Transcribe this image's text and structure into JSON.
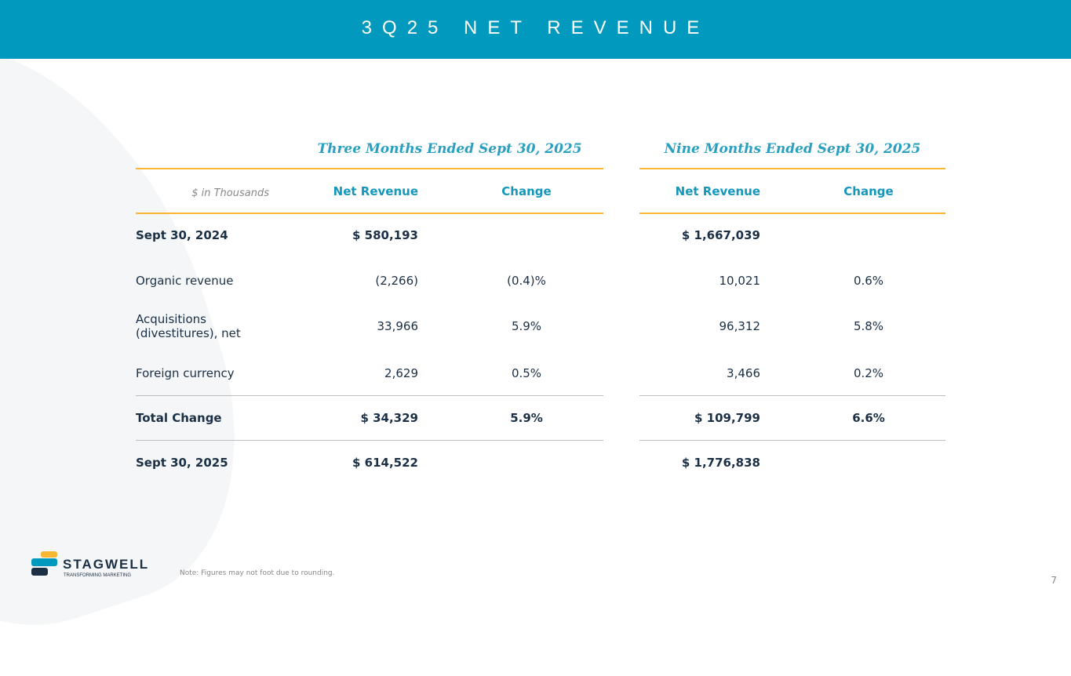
{
  "header": {
    "title": "3Q25 NET REVENUE"
  },
  "table": {
    "units_label": "$ in Thousands",
    "periods": [
      "Three Months Ended Sept 30, 2025",
      "Nine Months Ended Sept 30, 2025"
    ],
    "column_headers": [
      "Net Revenue",
      "Change",
      "Net Revenue",
      "Change"
    ],
    "rows": [
      {
        "label": "Sept 30, 2024",
        "bold": true,
        "values": [
          "$ 580,193",
          "",
          "$ 1,667,039",
          ""
        ]
      },
      {
        "label": "Organic revenue",
        "bold": false,
        "values": [
          "(2,266)",
          "(0.4)%",
          "10,021",
          "0.6%"
        ]
      },
      {
        "label": "Acquisitions (divestitures), net",
        "bold": false,
        "values": [
          "33,966",
          "5.9%",
          "96,312",
          "5.8%"
        ]
      },
      {
        "label": "Foreign currency",
        "bold": false,
        "values": [
          "2,629",
          "0.5%",
          "3,466",
          "0.2%"
        ]
      },
      {
        "label": "Total Change",
        "bold": true,
        "values": [
          "$ 34,329",
          "5.9%",
          "$ 109,799",
          "6.6%"
        ]
      },
      {
        "label": "Sept 30, 2025",
        "bold": true,
        "values": [
          "$ 614,522",
          "",
          "$ 1,776,838",
          ""
        ]
      }
    ]
  },
  "footer": {
    "note": "Note: Figures may not foot due to rounding.",
    "page_number": "7",
    "logo_text": "STAGWELL",
    "logo_tagline": "TRANSFORMING MARKETING"
  },
  "colors": {
    "header": "#0299bf",
    "accent_line": "#f7b733",
    "heading": "#1497bb",
    "text": "#1b2f45"
  }
}
